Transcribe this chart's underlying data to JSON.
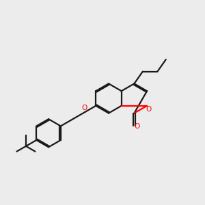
{
  "background_color": "#ececec",
  "bond_color": "#1a1a1a",
  "oxygen_color": "#ff0000",
  "bond_width": 1.6,
  "dbo": 0.055,
  "figsize": [
    3.0,
    3.0
  ],
  "dpi": 100,
  "xlim": [
    0,
    10
  ],
  "ylim": [
    0,
    10
  ]
}
